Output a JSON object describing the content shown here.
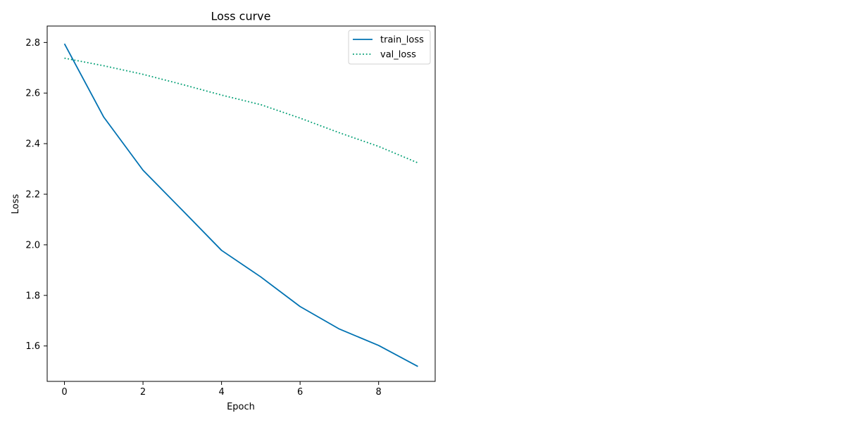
{
  "chart_data": {
    "type": "line",
    "title": "Loss curve",
    "xlabel": "Epoch",
    "ylabel": "Loss",
    "x": [
      0,
      1,
      2,
      3,
      4,
      5,
      6,
      7,
      8,
      9
    ],
    "xlim": [
      -0.44,
      9.44
    ],
    "ylim": [
      1.46,
      2.865
    ],
    "xticks": [
      0,
      2,
      4,
      6,
      8
    ],
    "yticks": [
      1.6,
      1.8,
      2.0,
      2.2,
      2.4,
      2.6,
      2.8
    ],
    "grid": false,
    "legend_position": "top-right",
    "series": [
      {
        "name": "train_loss",
        "color": "#0072b2",
        "style": "solid",
        "values": [
          2.795,
          2.505,
          2.295,
          2.137,
          1.978,
          1.873,
          1.756,
          1.667,
          1.602,
          1.519
        ]
      },
      {
        "name": "val_loss",
        "color": "#009e73",
        "style": "dotted",
        "values": [
          2.738,
          2.708,
          2.674,
          2.634,
          2.592,
          2.554,
          2.501,
          2.443,
          2.389,
          2.324
        ]
      }
    ]
  }
}
